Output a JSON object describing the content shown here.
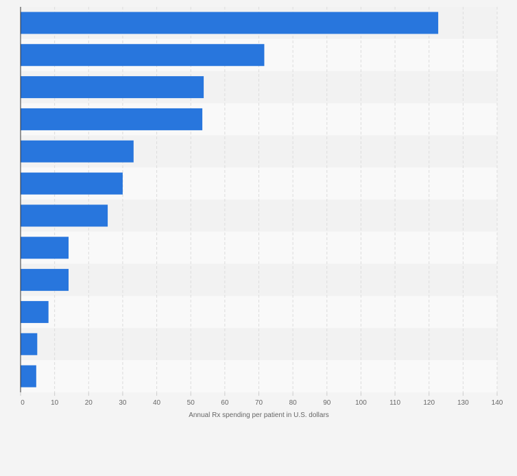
{
  "chart_data": {
    "type": "bar",
    "orientation": "horizontal",
    "categories": [
      "",
      "",
      "",
      "",
      "",
      "",
      "",
      "",
      "",
      "",
      "",
      ""
    ],
    "values": [
      122.7,
      71.6,
      53.8,
      53.4,
      33.2,
      30.0,
      25.6,
      14.1,
      14.1,
      8.2,
      4.9,
      4.6
    ],
    "xlabel": "Annual Rx spending per patient in U.S. dollars",
    "xlim": [
      0,
      140
    ],
    "ticks": [
      0,
      10,
      20,
      30,
      40,
      50,
      60,
      70,
      80,
      90,
      100,
      110,
      120,
      130,
      140
    ],
    "tick_labels": [
      "0",
      "10",
      "20",
      "30",
      "40",
      "50",
      "60",
      "70",
      "80",
      "90",
      "100",
      "110",
      "120",
      "130",
      "140"
    ],
    "grid": true,
    "colors": {
      "bar": "#2876dd",
      "background": "#f4f4f4",
      "band_light": "#f9f9f9",
      "band_dark": "#f2f2f2",
      "gridline": "#dcdcdc",
      "axis": "#333333",
      "tick_text": "#666666"
    }
  }
}
